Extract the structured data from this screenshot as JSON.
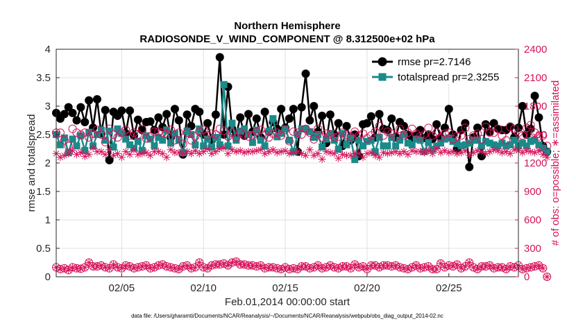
{
  "colors": {
    "rmse": "#000000",
    "spread": "#1a8a8a",
    "obs": "#d6125a",
    "grid": "#d9d9d9"
  },
  "chart_data": {
    "type": "line",
    "title": "Northern Hemisphere",
    "subtitle": "RADIOSONDE_V_WIND_COMPONENT @ 8.312500e+02 hPa",
    "xlabel": "Feb.01,2014 00:00:00 start",
    "ylabel": "rmse and totalspread",
    "y2label": "# of obs: o=possible; ∗=assimilated",
    "xlim": [
      1.0,
      29.25
    ],
    "ylim": [
      0,
      4
    ],
    "y2lim": [
      0,
      2400
    ],
    "x_ticks": [
      5,
      10,
      15,
      20,
      25
    ],
    "x_tick_labels": [
      "02/05",
      "02/10",
      "02/15",
      "02/20",
      "02/25"
    ],
    "y_ticks": [
      "0",
      "0.5",
      "1",
      "1.5",
      "2",
      "2.5",
      "3",
      "3.5",
      "4"
    ],
    "y2_ticks": [
      "0",
      "300",
      "600",
      "900",
      "1200",
      "1500",
      "1800",
      "2100",
      "2400"
    ],
    "legend": [
      "rmse pr=2.7146",
      "totalspread pr=2.3255"
    ],
    "footnote": "data file: /Users/gharamti/Documents/NCAR/Reanalysis/~/Documents/NCAR/Reanalysis/webpub/obs_diag_output_2014-02.nc",
    "x_start": 1.0,
    "x_step": 0.25,
    "series": [
      {
        "name": "rmse",
        "axis": "left",
        "values": [
          2.88,
          2.78,
          2.86,
          2.98,
          2.88,
          2.75,
          2.98,
          2.72,
          3.1,
          2.62,
          3.12,
          2.52,
          2.93,
          2.05,
          2.9,
          2.83,
          2.92,
          2.52,
          2.92,
          2.48,
          2.76,
          2.58,
          2.72,
          2.73,
          2.58,
          2.8,
          2.63,
          2.86,
          2.45,
          2.95,
          2.75,
          2.15,
          2.85,
          2.65,
          2.95,
          2.9,
          2.5,
          2.7,
          2.4,
          2.85,
          3.86,
          2.5,
          3.34,
          2.6,
          2.5,
          2.8,
          2.48,
          2.86,
          2.55,
          2.78,
          2.45,
          2.9,
          2.55,
          2.72,
          2.6,
          2.95,
          2.62,
          2.78,
          2.95,
          2.2,
          2.98,
          3.57,
          2.75,
          3.0,
          2.55,
          2.83,
          2.35,
          2.85,
          2.5,
          2.7,
          2.3,
          2.65,
          2.4,
          2.5,
          2.12,
          2.68,
          2.7,
          2.82,
          2.45,
          2.86,
          2.6,
          2.58,
          2.78,
          2.45,
          2.72,
          2.65,
          2.5,
          2.45,
          2.48,
          2.58,
          2.44,
          2.5,
          2.42,
          2.68,
          2.45,
          2.62,
          2.95,
          2.5,
          2.25,
          2.58,
          2.7,
          1.93,
          2.45,
          2.62,
          2.12,
          2.68,
          2.55,
          2.7,
          2.6,
          2.58,
          2.58,
          2.64,
          2.45,
          2.62,
          3.0,
          2.5,
          2.6,
          3.18,
          2.8,
          2.3,
          2.2
        ]
      },
      {
        "name": "totalspread",
        "axis": "left",
        "values": [
          2.5,
          2.32,
          2.44,
          2.18,
          2.42,
          2.3,
          2.48,
          2.22,
          2.54,
          2.3,
          2.5,
          2.58,
          2.4,
          2.56,
          2.28,
          2.6,
          2.52,
          2.42,
          2.32,
          2.26,
          2.38,
          2.22,
          2.48,
          2.42,
          2.3,
          2.45,
          2.4,
          2.58,
          2.35,
          2.52,
          2.4,
          2.18,
          2.56,
          2.5,
          2.32,
          2.6,
          2.3,
          2.42,
          2.28,
          2.45,
          2.32,
          3.38,
          2.3,
          2.7,
          2.4,
          2.56,
          2.6,
          2.5,
          2.36,
          2.58,
          2.4,
          2.3,
          2.56,
          2.78,
          2.46,
          2.52,
          2.6,
          2.4,
          2.2,
          2.5,
          2.6,
          2.6,
          2.55,
          2.45,
          2.5,
          2.28,
          2.42,
          2.52,
          2.4,
          2.24,
          2.52,
          2.32,
          2.44,
          2.06,
          2.4,
          2.3,
          2.38,
          2.4,
          2.2,
          2.45,
          2.3,
          2.3,
          2.45,
          2.3,
          2.4,
          2.5,
          2.35,
          2.32,
          2.42,
          2.4,
          2.2,
          2.36,
          2.24,
          2.3,
          2.35,
          2.42,
          2.44,
          2.38,
          2.34,
          2.3,
          2.32,
          2.35,
          2.4,
          2.4,
          2.3,
          2.38,
          2.35,
          2.32,
          2.3,
          2.35,
          2.3,
          2.32,
          2.4,
          2.3,
          2.35,
          2.3,
          2.38,
          2.4,
          2.32,
          2.26,
          2.2
        ]
      },
      {
        "name": "obs possible",
        "axis": "right",
        "values": [
          1520,
          1520,
          1440,
          1380,
          1560,
          1520,
          1500,
          1520,
          1470,
          1510,
          1550,
          1500,
          1420,
          1560,
          1500,
          1470,
          1520,
          1550,
          1490,
          1520,
          1500,
          1560,
          1460,
          1480,
          1530,
          1530,
          1520,
          1510,
          1550,
          1440,
          1520,
          1400,
          1520,
          1440,
          1480,
          1530,
          1550,
          1490,
          1510,
          1500,
          1560,
          1540,
          1480,
          1520,
          1470,
          1520,
          1500,
          1480,
          1490,
          1530,
          1550,
          1500,
          1470,
          1510,
          1520,
          1490,
          1550,
          1430,
          1530,
          1520,
          1500,
          1560,
          1520,
          1450,
          1560,
          1470,
          1510,
          1500,
          1470,
          1480,
          1520,
          1500,
          1480,
          1530,
          1490,
          1510,
          1460,
          1490,
          1530,
          1590,
          1490,
          1530,
          1510,
          1480,
          1560,
          1490,
          1520,
          1560,
          1510,
          1480,
          1500,
          1570,
          1490,
          1520,
          1470,
          1510,
          1520,
          1450,
          1480,
          1490,
          1570,
          1450,
          1490,
          1510,
          1450,
          1580,
          1520,
          1520,
          1560,
          1490,
          1440,
          1580,
          1560,
          1520,
          1490,
          1570,
          1600,
          1520,
          1480,
          1490,
          1380
        ]
      },
      {
        "name": "obs assimilated",
        "axis": "right",
        "values": [
          1300,
          1260,
          1280,
          1300,
          1330,
          1290,
          1310,
          1270,
          1290,
          1360,
          1320,
          1320,
          1290,
          1340,
          1280,
          1300,
          1260,
          1320,
          1290,
          1340,
          1290,
          1300,
          1310,
          1280,
          1320,
          1320,
          1300,
          1260,
          1340,
          1310,
          1310,
          1300,
          1320,
          1300,
          1330,
          1300,
          1320,
          1350,
          1300,
          1320,
          1350,
          1360,
          1300,
          1340,
          1320,
          1330,
          1310,
          1320,
          1320,
          1330,
          1340,
          1300,
          1320,
          1340,
          1310,
          1320,
          1330,
          1300,
          1310,
          1320,
          1300,
          1280,
          1340,
          1280,
          1300,
          1240,
          1320,
          1310,
          1300,
          1250,
          1290,
          1280,
          1280,
          1300,
          1300,
          1260,
          1300,
          1310,
          1280,
          1260,
          1310,
          1300,
          1310,
          1320,
          1300,
          1320,
          1290,
          1330,
          1320,
          1320,
          1310,
          1330,
          1300,
          1350,
          1310,
          1330,
          1310,
          1320,
          1300,
          1310,
          1330,
          1280,
          1310,
          1330,
          1320,
          1300,
          1320,
          1340,
          1330,
          1310,
          1320,
          1300,
          1340,
          1330,
          1310,
          1330,
          1320,
          1310,
          1330,
          1290,
          1260
        ]
      },
      {
        "name": "obs possible (bottom)",
        "axis": "right",
        "values": [
          100,
          80,
          90,
          70,
          100,
          90,
          85,
          100,
          150,
          110,
          110,
          120,
          100,
          90,
          130,
          100,
          90,
          120,
          110,
          90,
          100,
          110,
          120,
          90,
          100,
          120,
          130,
          110,
          100,
          90,
          80,
          110,
          120,
          90,
          100,
          150,
          100,
          90,
          120,
          130,
          130,
          140,
          120,
          150,
          160,
          130,
          130,
          120,
          120,
          110,
          120,
          90,
          100,
          100,
          90,
          80,
          100,
          80,
          90,
          80,
          110,
          110,
          90,
          100,
          120,
          90,
          100,
          120,
          100,
          90,
          110,
          110,
          90,
          130,
          100,
          110,
          80,
          120,
          120,
          100,
          120,
          120,
          110,
          120,
          100,
          90,
          80,
          100,
          120,
          90,
          100,
          110,
          80,
          80,
          140,
          100,
          120,
          110,
          130,
          90,
          110,
          150,
          100,
          80,
          110,
          110,
          120,
          90,
          100,
          100,
          80,
          110,
          100,
          120,
          80,
          90,
          100,
          110,
          120,
          90,
          0
        ]
      }
    ]
  }
}
